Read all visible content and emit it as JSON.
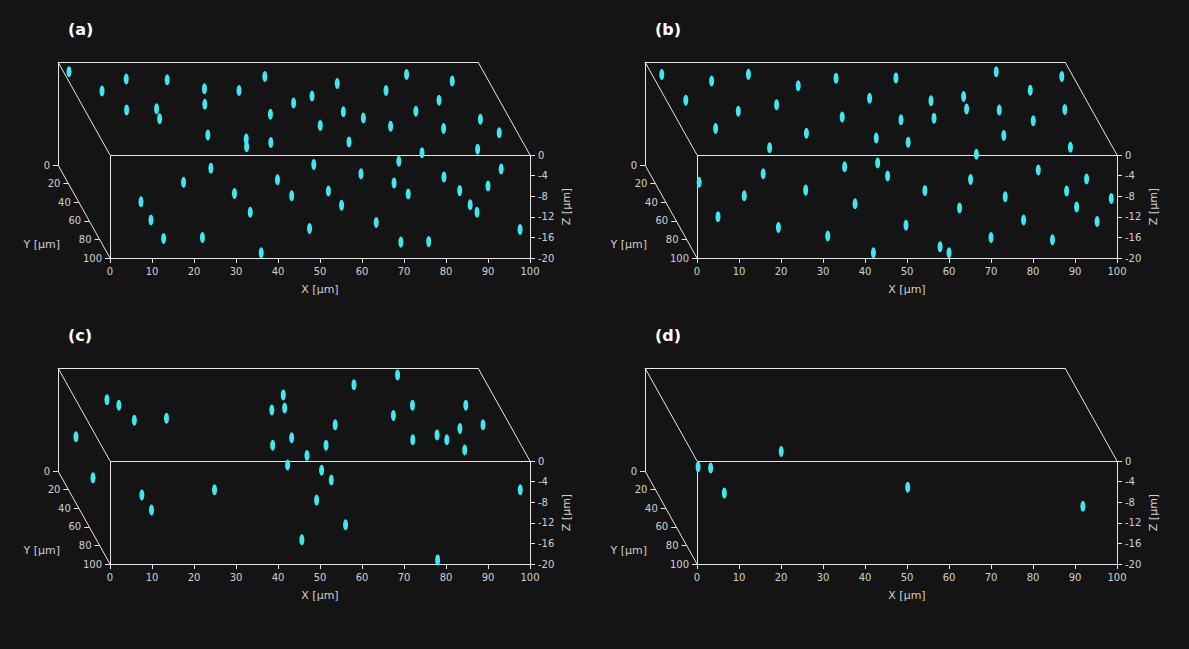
{
  "chart_data": [
    {
      "type": "scatter3d",
      "title": "(a)",
      "x_label": "X [µm]",
      "y_label": "Y [µm]",
      "z_label": "Z [µm]",
      "xlim": [
        0,
        100
      ],
      "xticks": [
        0,
        10,
        20,
        30,
        40,
        50,
        60,
        70,
        80,
        90,
        100
      ],
      "ylim": [
        0,
        100
      ],
      "yticks": [
        0,
        20,
        40,
        60,
        80,
        100
      ],
      "zlim": [
        0,
        -20
      ],
      "zticks": [
        0,
        -4,
        -8,
        -12,
        -16,
        -20
      ],
      "color": "#3ee8f0",
      "marker": "ellipse",
      "points": [
        [
          2,
          5,
          -1
        ],
        [
          8,
          20,
          -2
        ],
        [
          12,
          35,
          -3
        ],
        [
          15,
          10,
          -1.5
        ],
        [
          18,
          50,
          -2
        ],
        [
          20,
          28,
          -4
        ],
        [
          25,
          8,
          -2
        ],
        [
          28,
          62,
          -3
        ],
        [
          30,
          40,
          -1
        ],
        [
          33,
          15,
          -2.5
        ],
        [
          35,
          80,
          -2
        ],
        [
          38,
          55,
          -5
        ],
        [
          40,
          25,
          -1
        ],
        [
          42,
          70,
          -3
        ],
        [
          45,
          45,
          -2
        ],
        [
          48,
          10,
          -1
        ],
        [
          50,
          88,
          -4
        ],
        [
          52,
          33,
          -2
        ],
        [
          55,
          60,
          -1.5
        ],
        [
          58,
          20,
          -3
        ],
        [
          60,
          75,
          -2
        ],
        [
          62,
          48,
          -1
        ],
        [
          65,
          12,
          -2
        ],
        [
          68,
          38,
          -4
        ],
        [
          70,
          90,
          -3
        ],
        [
          72,
          58,
          -2
        ],
        [
          75,
          25,
          -1
        ],
        [
          78,
          70,
          -5
        ],
        [
          80,
          42,
          -2
        ],
        [
          82,
          8,
          -1
        ],
        [
          85,
          55,
          -3
        ],
        [
          87,
          30,
          -2
        ],
        [
          90,
          80,
          -2.5
        ],
        [
          92,
          15,
          -1
        ],
        [
          95,
          45,
          -3
        ],
        [
          97,
          65,
          -2
        ],
        [
          8,
          95,
          -10
        ],
        [
          10,
          98,
          -13
        ],
        [
          18,
          96,
          -6
        ],
        [
          22,
          100,
          -16
        ],
        [
          25,
          92,
          -4
        ],
        [
          30,
          97,
          -8
        ],
        [
          34,
          95,
          -12
        ],
        [
          40,
          99,
          -5
        ],
        [
          44,
          94,
          -9
        ],
        [
          48,
          96,
          -15
        ],
        [
          52,
          100,
          -7
        ],
        [
          56,
          93,
          -11
        ],
        [
          60,
          98,
          -4
        ],
        [
          64,
          95,
          -14
        ],
        [
          68,
          97,
          -6
        ],
        [
          72,
          92,
          -9
        ],
        [
          76,
          99,
          -17
        ],
        [
          80,
          96,
          -5
        ],
        [
          84,
          94,
          -8
        ],
        [
          86,
          98,
          -10
        ],
        [
          88,
          95,
          -12
        ],
        [
          90,
          100,
          -6
        ],
        [
          94,
          93,
          -4
        ],
        [
          98,
          97,
          -15
        ],
        [
          14,
          90,
          -18
        ],
        [
          36,
          100,
          -19
        ],
        [
          70,
          94,
          -18
        ]
      ]
    },
    {
      "type": "scatter3d",
      "title": "(b)",
      "x_label": "X [µm]",
      "y_label": "Y [µm]",
      "z_label": "Z [µm]",
      "xlim": [
        0,
        100
      ],
      "xticks": [
        0,
        10,
        20,
        30,
        40,
        50,
        60,
        70,
        80,
        90,
        100
      ],
      "ylim": [
        0,
        100
      ],
      "yticks": [
        0,
        20,
        40,
        60,
        80,
        100
      ],
      "zlim": [
        0,
        -20
      ],
      "zticks": [
        0,
        -4,
        -8,
        -12,
        -16,
        -20
      ],
      "color": "#3ee8f0",
      "marker": "ellipse",
      "points": [
        [
          3,
          8,
          -1
        ],
        [
          6,
          30,
          -2
        ],
        [
          10,
          55,
          -3
        ],
        [
          14,
          15,
          -1
        ],
        [
          17,
          42,
          -2
        ],
        [
          21,
          70,
          -4
        ],
        [
          24,
          5,
          -1.5
        ],
        [
          27,
          35,
          -2
        ],
        [
          31,
          60,
          -3
        ],
        [
          34,
          20,
          -1
        ],
        [
          37,
          85,
          -5
        ],
        [
          41,
          48,
          -2
        ],
        [
          44,
          12,
          -1
        ],
        [
          47,
          65,
          -3
        ],
        [
          50,
          28,
          -2
        ],
        [
          53,
          78,
          -1.5
        ],
        [
          56,
          40,
          -4
        ],
        [
          59,
          6,
          -2
        ],
        [
          62,
          55,
          -1
        ],
        [
          65,
          25,
          -3
        ],
        [
          68,
          88,
          -2
        ],
        [
          71,
          45,
          -1
        ],
        [
          74,
          15,
          -4
        ],
        [
          77,
          68,
          -2
        ],
        [
          80,
          35,
          -3
        ],
        [
          83,
          5,
          -1
        ],
        [
          86,
          52,
          -2
        ],
        [
          89,
          22,
          -1.5
        ],
        [
          92,
          75,
          -3
        ],
        [
          95,
          40,
          -2
        ],
        [
          98,
          10,
          -1
        ],
        [
          1,
          96,
          -6
        ],
        [
          5,
          100,
          -12
        ],
        [
          12,
          94,
          -9
        ],
        [
          16,
          98,
          -4
        ],
        [
          20,
          95,
          -15
        ],
        [
          26,
          99,
          -7
        ],
        [
          32,
          93,
          -17
        ],
        [
          38,
          97,
          -10
        ],
        [
          42,
          100,
          -19
        ],
        [
          46,
          95,
          -5
        ],
        [
          50,
          98,
          -14
        ],
        [
          55,
          94,
          -8
        ],
        [
          58,
          99,
          -18
        ],
        [
          63,
          96,
          -11
        ],
        [
          66,
          93,
          -6
        ],
        [
          70,
          100,
          -16
        ],
        [
          74,
          95,
          -9
        ],
        [
          78,
          98,
          -13
        ],
        [
          82,
          94,
          -4
        ],
        [
          85,
          97,
          -17
        ],
        [
          88,
          100,
          -7
        ],
        [
          91,
          95,
          -11
        ],
        [
          93,
          98,
          -5
        ],
        [
          96,
          94,
          -14
        ],
        [
          99,
          97,
          -9
        ],
        [
          44,
          92,
          -3
        ],
        [
          60,
          100,
          -19
        ]
      ]
    },
    {
      "type": "scatter3d",
      "title": "(c)",
      "x_label": "X [µm]",
      "y_label": "Y [µm]",
      "z_label": "Z [µm]",
      "xlim": [
        0,
        100
      ],
      "xticks": [
        0,
        10,
        20,
        30,
        40,
        50,
        60,
        70,
        80,
        90,
        100
      ],
      "ylim": [
        0,
        100
      ],
      "yticks": [
        0,
        20,
        40,
        60,
        80,
        100
      ],
      "zlim": [
        0,
        -20
      ],
      "zticks": [
        0,
        -4,
        -8,
        -12,
        -16,
        -20
      ],
      "color": "#3ee8f0",
      "marker": "ellipse",
      "points": [
        [
          1.3,
          24,
          -9
        ],
        [
          10.9,
          29,
          -2
        ],
        [
          12.6,
          45,
          -2
        ],
        [
          20.5,
          43,
          -2
        ],
        [
          46.7,
          34,
          -2
        ],
        [
          50,
          32,
          -2
        ],
        [
          47.7,
          64,
          -2
        ],
        [
          42.2,
          72,
          -2
        ],
        [
          49,
          83,
          -2
        ],
        [
          54.9,
          72,
          -2
        ],
        [
          69.6,
          7,
          -2
        ],
        [
          80.6,
          2,
          -1
        ],
        [
          80.8,
          29,
          -2
        ],
        [
          74.9,
          40,
          -2
        ],
        [
          76.3,
          66,
          -2
        ],
        [
          82.7,
          61,
          -2
        ],
        [
          84.4,
          66,
          -2
        ],
        [
          93.5,
          29,
          -2
        ],
        [
          89,
          54,
          -2
        ],
        [
          87.3,
          77,
          -2
        ],
        [
          95,
          50,
          -2
        ],
        [
          42.9,
          95,
          -1.7
        ],
        [
          51,
          95,
          -2.7
        ],
        [
          53.3,
          95,
          -4.6
        ],
        [
          8.2,
          95,
          -7.5
        ],
        [
          10.5,
          95,
          -10.4
        ],
        [
          25.5,
          95,
          -6.5
        ],
        [
          49.8,
          95,
          -8.5
        ],
        [
          56.7,
          95,
          -13.3
        ],
        [
          78,
          100,
          -19.2
        ],
        [
          46.3,
          95,
          -16.2
        ],
        [
          98.3,
          95,
          -6.5
        ],
        [
          0.9,
          60,
          -10.5
        ],
        [
          8.8,
          23,
          -2
        ],
        [
          51.4,
          18,
          -2
        ],
        [
          59.8,
          50,
          -2
        ]
      ]
    },
    {
      "type": "scatter3d",
      "title": "(d)",
      "x_label": "X [µm]",
      "y_label": "Y [µm]",
      "z_label": "Z [µm]",
      "xlim": [
        0,
        100
      ],
      "xticks": [
        0,
        10,
        20,
        30,
        40,
        50,
        60,
        70,
        80,
        90,
        100
      ],
      "ylim": [
        0,
        100
      ],
      "yticks": [
        0,
        20,
        40,
        60,
        80,
        100
      ],
      "zlim": [
        0,
        -20
      ],
      "zticks": [
        0,
        -4,
        -8,
        -12,
        -16,
        -20
      ],
      "color": "#3ee8f0",
      "marker": "ellipse",
      "points": [
        [
          0.5,
          98,
          -1.5
        ],
        [
          3.5,
          98,
          -1.7
        ],
        [
          6.5,
          100,
          -6.2
        ],
        [
          25,
          60,
          -5.4
        ],
        [
          51.4,
          90,
          -6.9
        ],
        [
          92.5,
          95,
          -9.7
        ]
      ]
    }
  ]
}
